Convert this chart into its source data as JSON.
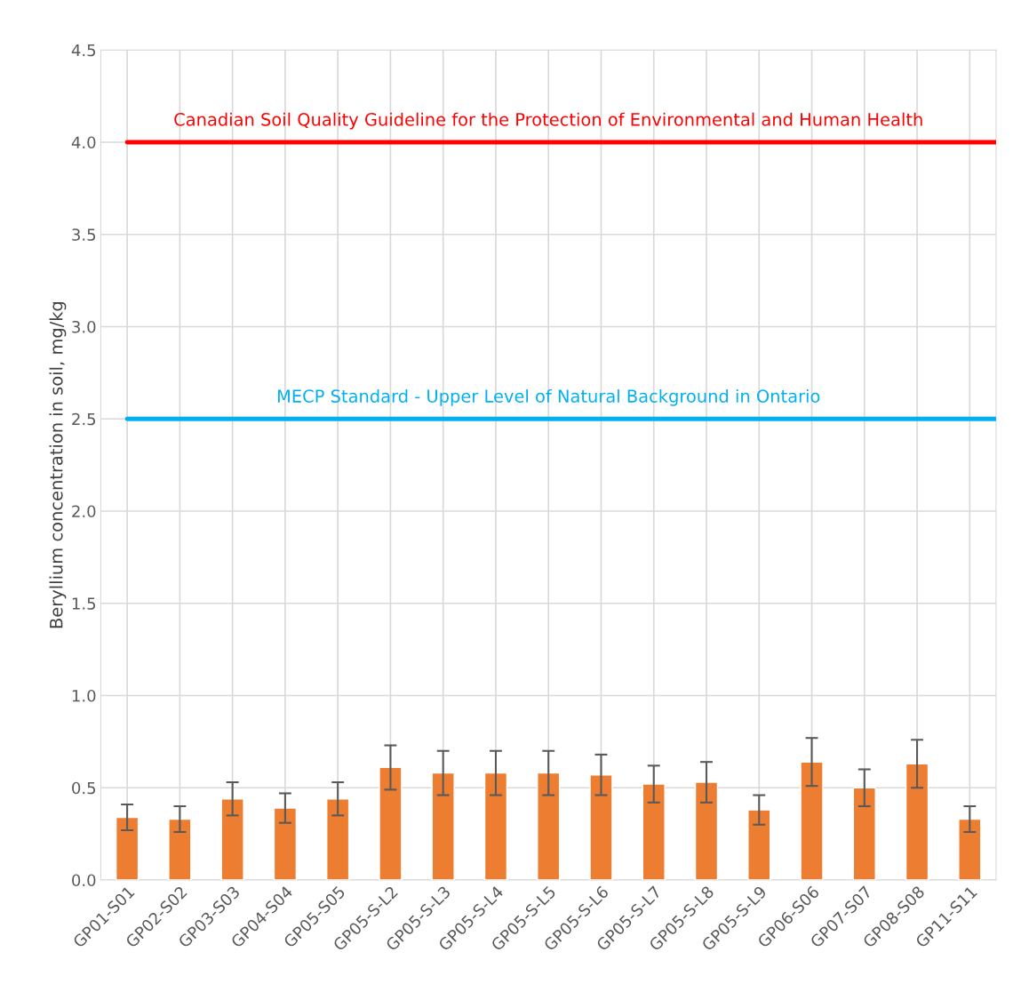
{
  "chart_data": {
    "type": "bar",
    "ylabel": "Beryllium concentration in soil, mg/kg",
    "categories": [
      "GP01-S01",
      "GP02-S02",
      "GP03-S03",
      "GP04-S04",
      "GP05-S05",
      "GP05-S-L2",
      "GP05-S-L3",
      "GP05-S-L4",
      "GP05-S-L5",
      "GP05-S-L6",
      "GP05-S-L7",
      "GP05-S-L8",
      "GP05-S-L9",
      "GP06-S06",
      "GP07-S07",
      "GP08-S08",
      "GP11-S11"
    ],
    "values": [
      0.34,
      0.33,
      0.44,
      0.39,
      0.44,
      0.61,
      0.58,
      0.58,
      0.58,
      0.57,
      0.52,
      0.53,
      0.38,
      0.64,
      0.5,
      0.63,
      0.33
    ],
    "errors": [
      0.07,
      0.07,
      0.09,
      0.08,
      0.09,
      0.12,
      0.12,
      0.12,
      0.12,
      0.11,
      0.1,
      0.11,
      0.08,
      0.13,
      0.1,
      0.13,
      0.07
    ],
    "color": "#ed7d31",
    "ylim": [
      0,
      4.5
    ],
    "yticks": [
      {
        "value": 0,
        "label": "0.0"
      },
      0.5,
      {
        "value": 1,
        "label": "1.0"
      },
      1.5,
      {
        "value": 2,
        "label": "2.0"
      },
      2.5,
      {
        "value": 3,
        "label": "3.0"
      },
      3.5,
      {
        "value": 4,
        "label": "4.0"
      },
      4.5
    ],
    "grid": true,
    "ref_lines": [
      {
        "axis": "y",
        "value": 4.0,
        "label": "Canadian Soil Quality Guideline for the Protection of Environmental and Human Health",
        "color": "#ff0000"
      },
      {
        "axis": "y",
        "value": 2.5,
        "label": "MECP Standard - Upper Level of Natural Background in Ontario",
        "color": "#00b0f0"
      }
    ]
  }
}
